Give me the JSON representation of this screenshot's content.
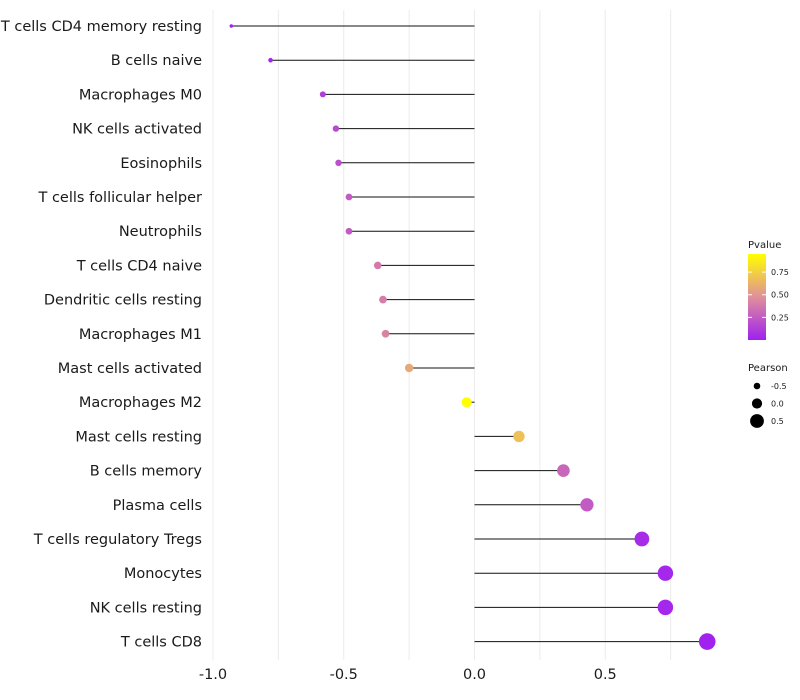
{
  "chart_data": {
    "type": "lollipop",
    "xlabel": "",
    "ylabel": "",
    "xlim": [
      -1.0,
      0.9
    ],
    "xticks": [
      -1.0,
      -0.5,
      0.0,
      0.5
    ],
    "xtick_labels": [
      "-1.0",
      "-0.5",
      "0.0",
      "0.5"
    ],
    "categories": [
      "T cells CD4 memory resting",
      "B cells naive",
      "Macrophages M0",
      "NK cells activated",
      "Eosinophils",
      "T cells follicular helper",
      "Neutrophils",
      "T cells CD4 naive",
      "Dendritic cells resting",
      "Macrophages M1",
      "Mast cells activated",
      "Macrophages M2",
      "Mast cells resting",
      "B cells memory",
      "Plasma cells",
      "T cells regulatory  Tregs",
      "Monocytes",
      "NK cells resting",
      "T cells CD8"
    ],
    "pearson": [
      -0.93,
      -0.78,
      -0.58,
      -0.53,
      -0.52,
      -0.48,
      -0.48,
      -0.37,
      -0.35,
      -0.34,
      -0.25,
      -0.03,
      0.17,
      0.34,
      0.43,
      0.64,
      0.73,
      0.73,
      0.89
    ],
    "pvalue": [
      0.01,
      0.03,
      0.12,
      0.18,
      0.2,
      0.25,
      0.25,
      0.38,
      0.4,
      0.42,
      0.58,
      0.97,
      0.68,
      0.3,
      0.25,
      0.05,
      0.03,
      0.03,
      0.01
    ],
    "legend_color": {
      "title": "Pvalue",
      "ticks": [
        0.25,
        0.5,
        0.75
      ],
      "tick_labels": [
        "0.25",
        "0.50",
        "0.75"
      ],
      "range": [
        0.0,
        0.95
      ],
      "low_color": "#a020f0",
      "mid_color": "#e0909a",
      "high_color": "#ffff00"
    },
    "legend_size": {
      "title": "Pearson",
      "values": [
        -0.5,
        0.0,
        0.5
      ],
      "labels": [
        "-0.5",
        "0.0",
        "0.5"
      ]
    },
    "legend_position": "right",
    "grid": true
  }
}
